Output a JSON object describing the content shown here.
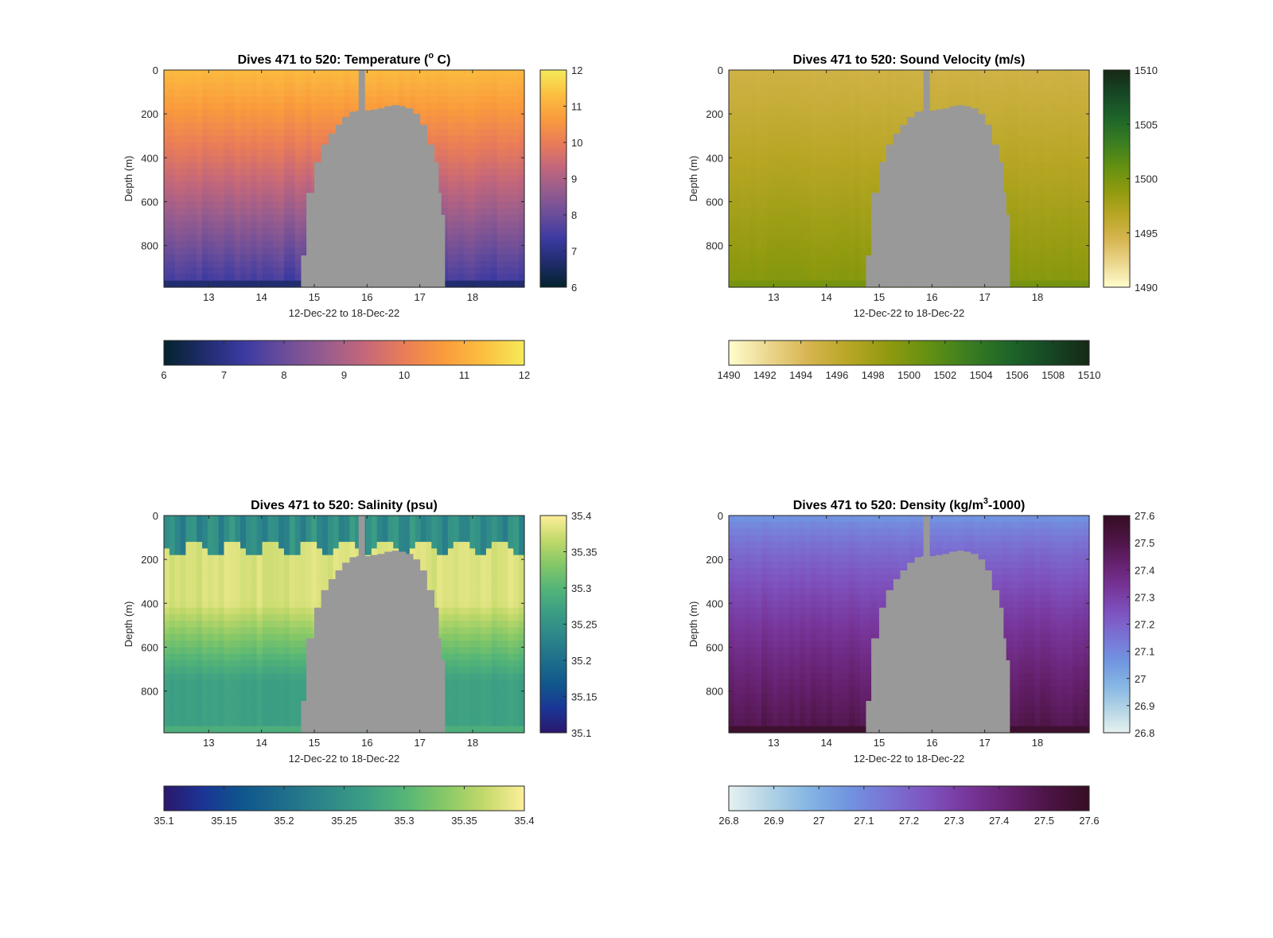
{
  "chart_data": [
    {
      "type": "heatmap",
      "title": "Dives 471 to 520: Temperature (° C)",
      "title_main": "Dives 471 to 520: Temperature (",
      "title_sup": "o",
      "title_tail": " C)",
      "xlabel": "12-Dec-22 to 18-Dec-22",
      "ylabel": "Depth (m)",
      "x_ticks": [
        "13",
        "14",
        "15",
        "16",
        "17",
        "18"
      ],
      "x_tick_values": [
        13,
        14,
        15,
        16,
        17,
        18
      ],
      "xlim": [
        12.15,
        18.98
      ],
      "y_ticks": [
        "0",
        "200",
        "400",
        "600",
        "800"
      ],
      "y_tick_values": [
        0,
        200,
        400,
        600,
        800
      ],
      "ylim": [
        0,
        990
      ],
      "y_reversed": true,
      "clim": [
        6,
        12
      ],
      "colormap": "thermal",
      "colorbar_vertical_ticks": [
        "6",
        "7",
        "8",
        "9",
        "10",
        "11",
        "12"
      ],
      "colorbar_horizontal_ticks": [
        "6",
        "7",
        "8",
        "9",
        "10",
        "11",
        "12"
      ],
      "surface_value": 11.2,
      "deep_value": 7.3
    },
    {
      "type": "heatmap",
      "title": "Dives 471 to 520: Sound Velocity (m/s)",
      "title_main": "Dives 471 to 520: Sound Velocity (m/s)",
      "title_sup": "",
      "title_tail": "",
      "xlabel": "12-Dec-22 to 18-Dec-22",
      "ylabel": "Depth (m)",
      "x_ticks": [
        "13",
        "14",
        "15",
        "16",
        "17",
        "18"
      ],
      "x_tick_values": [
        13,
        14,
        15,
        16,
        17,
        18
      ],
      "xlim": [
        12.15,
        18.98
      ],
      "y_ticks": [
        "0",
        "200",
        "400",
        "600",
        "800"
      ],
      "y_tick_values": [
        0,
        200,
        400,
        600,
        800
      ],
      "ylim": [
        0,
        990
      ],
      "y_reversed": true,
      "clim": [
        1490,
        1510
      ],
      "colormap": "speed",
      "colorbar_vertical_ticks": [
        "1490",
        "1495",
        "1500",
        "1505",
        "1510"
      ],
      "colorbar_horizontal_ticks": [
        "1490",
        "1492",
        "1494",
        "1496",
        "1498",
        "1500",
        "1502",
        "1504",
        "1506",
        "1508",
        "1510"
      ],
      "surface_value": 1495,
      "deep_value": 1499.5
    },
    {
      "type": "heatmap",
      "title": "Dives 471 to 520: Salinity (psu)",
      "title_main": "Dives 471 to 520: Salinity (psu)",
      "title_sup": "",
      "title_tail": "",
      "xlabel": "12-Dec-22 to 18-Dec-22",
      "ylabel": "Depth (m)",
      "x_ticks": [
        "13",
        "14",
        "15",
        "16",
        "17",
        "18"
      ],
      "x_tick_values": [
        13,
        14,
        15,
        16,
        17,
        18
      ],
      "xlim": [
        12.15,
        18.98
      ],
      "y_ticks": [
        "0",
        "200",
        "400",
        "600",
        "800"
      ],
      "y_tick_values": [
        0,
        200,
        400,
        600,
        800
      ],
      "ylim": [
        0,
        990
      ],
      "y_reversed": true,
      "clim": [
        35.1,
        35.4
      ],
      "colormap": "haline",
      "colorbar_vertical_ticks": [
        "35.1",
        "35.15",
        "35.2",
        "35.25",
        "35.3",
        "35.35",
        "35.4"
      ],
      "colorbar_horizontal_ticks": [
        "35.1",
        "35.15",
        "35.2",
        "35.25",
        "35.3",
        "35.35",
        "35.4"
      ],
      "surface_value": 35.24,
      "subsurface_value": 35.38,
      "deep_value": 35.27
    },
    {
      "type": "heatmap",
      "title": "Dives 471 to 520: Density (kg/m³-1000)",
      "title_main": "Dives 471 to 520: Density (kg/m",
      "title_sup": "3",
      "title_tail": "-1000)",
      "xlabel": "12-Dec-22 to 18-Dec-22",
      "ylabel": "Depth (m)",
      "x_ticks": [
        "13",
        "14",
        "15",
        "16",
        "17",
        "18"
      ],
      "x_tick_values": [
        13,
        14,
        15,
        16,
        17,
        18
      ],
      "xlim": [
        12.15,
        18.98
      ],
      "y_ticks": [
        "0",
        "200",
        "400",
        "600",
        "800"
      ],
      "y_tick_values": [
        0,
        200,
        400,
        600,
        800
      ],
      "ylim": [
        0,
        990
      ],
      "y_reversed": true,
      "clim": [
        26.8,
        27.6
      ],
      "colormap": "dense",
      "colorbar_vertical_ticks": [
        "26.8",
        "26.9",
        "27",
        "27.1",
        "27.2",
        "27.3",
        "27.4",
        "27.5",
        "27.6"
      ],
      "colorbar_horizontal_ticks": [
        "26.8",
        "26.9",
        "27",
        "27.1",
        "27.2",
        "27.3",
        "27.4",
        "27.5",
        "27.6"
      ],
      "surface_value": 27.05,
      "deep_value": 27.5
    }
  ],
  "colormaps": {
    "thermal": [
      "#04232d",
      "#1f2c6b",
      "#3b3aa1",
      "#6a4d9a",
      "#965c8e",
      "#c4677a",
      "#ea7d57",
      "#fa9c3c",
      "#fbc040",
      "#f5ea59"
    ],
    "speed": [
      "#fffdcd",
      "#ebd68e",
      "#d6b550",
      "#b8a624",
      "#8f9a0e",
      "#639012",
      "#3a7d21",
      "#1e6529",
      "#164825",
      "#172815"
    ],
    "haline": [
      "#2a186c",
      "#1b3596",
      "#0f578c",
      "#1f6e8b",
      "#2d8689",
      "#3b9e84",
      "#55b577",
      "#86c867",
      "#c3d96a",
      "#fdef9a"
    ],
    "dense": [
      "#e6f1f1",
      "#b2d3e5",
      "#84b5e3",
      "#7194e0",
      "#7a72d4",
      "#7e52be",
      "#773599",
      "#66216f",
      "#4c1444",
      "#360d24"
    ]
  },
  "mask_color": "#999999",
  "mask_profile": {
    "description_free": true,
    "x_start": 14.75,
    "x_end": 17.47,
    "gap_x": 15.9,
    "top_depths": [
      [
        14.75,
        845
      ],
      [
        14.85,
        560
      ],
      [
        15.0,
        420
      ],
      [
        15.13,
        340
      ],
      [
        15.27,
        290
      ],
      [
        15.4,
        250
      ],
      [
        15.53,
        215
      ],
      [
        15.67,
        190
      ],
      [
        15.8,
        185
      ],
      [
        15.93,
        185
      ],
      [
        16.07,
        180
      ],
      [
        16.2,
        175
      ],
      [
        16.33,
        165
      ],
      [
        16.47,
        160
      ],
      [
        16.6,
        165
      ],
      [
        16.73,
        175
      ],
      [
        16.87,
        200
      ],
      [
        17.0,
        250
      ],
      [
        17.13,
        340
      ],
      [
        17.27,
        420
      ],
      [
        17.35,
        560
      ],
      [
        17.4,
        660
      ]
    ]
  }
}
